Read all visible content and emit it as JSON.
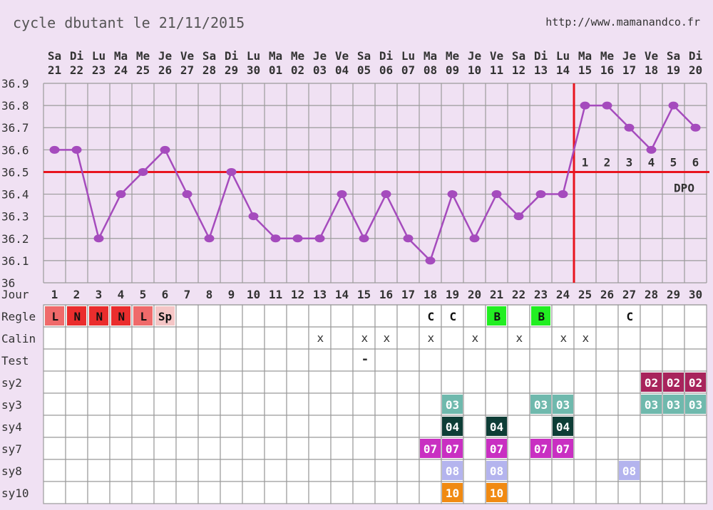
{
  "header": {
    "title": "cycle dbutant le 21/11/2015",
    "url": "http://www.mamanandco.fr"
  },
  "chart_data": {
    "type": "line",
    "title": "cycle dbutant le 21/11/2015",
    "weekdays": [
      "Sa",
      "Di",
      "Lu",
      "Ma",
      "Me",
      "Je",
      "Ve",
      "Sa",
      "Di",
      "Lu",
      "Ma",
      "Me",
      "Je",
      "Ve",
      "Sa",
      "Di",
      "Lu",
      "Ma",
      "Me",
      "Je",
      "Ve",
      "Sa",
      "Di",
      "Lu",
      "Ma",
      "Me",
      "Je",
      "Ve",
      "Sa",
      "Di"
    ],
    "dates": [
      "21",
      "22",
      "23",
      "24",
      "25",
      "26",
      "27",
      "28",
      "29",
      "30",
      "01",
      "02",
      "03",
      "04",
      "05",
      "06",
      "07",
      "08",
      "09",
      "10",
      "11",
      "12",
      "13",
      "14",
      "15",
      "16",
      "17",
      "18",
      "19",
      "20"
    ],
    "cycle_days": [
      "1",
      "2",
      "3",
      "4",
      "5",
      "6",
      "7",
      "8",
      "9",
      "10",
      "11",
      "12",
      "13",
      "14",
      "15",
      "16",
      "17",
      "18",
      "19",
      "20",
      "21",
      "22",
      "23",
      "24",
      "25",
      "26",
      "27",
      "28",
      "29",
      "30"
    ],
    "y_ticks": [
      "36.9",
      "36.8",
      "36.7",
      "36.6",
      "36.5",
      "36.4",
      "36.3",
      "36.2",
      "36.1",
      "36"
    ],
    "ylim": [
      36.0,
      36.9
    ],
    "temperatures": [
      36.6,
      36.6,
      36.2,
      36.4,
      36.5,
      36.6,
      36.4,
      36.2,
      36.5,
      36.3,
      36.2,
      36.2,
      36.2,
      36.4,
      36.2,
      36.4,
      36.2,
      36.1,
      36.4,
      36.2,
      36.4,
      36.3,
      36.4,
      36.4,
      36.8,
      36.8,
      36.7,
      36.6,
      36.8,
      36.7
    ],
    "coverline": 36.5,
    "ovulation_day": 24,
    "dpo_labels": [
      "1",
      "2",
      "3",
      "4",
      "5",
      "6"
    ],
    "dpo_text": "DPO",
    "grid": true,
    "row_labels": [
      "Jour",
      "Regle",
      "Calin",
      "Test",
      "sy2",
      "sy3",
      "sy4",
      "sy7",
      "sy8",
      "sy10"
    ],
    "colors": {
      "line": "#a54bbd",
      "coverline": "#e8141e",
      "grid": "#9b9b9b",
      "cell_bg": "#ffffff",
      "regle_L": "#ef6a6a",
      "regle_N": "#ea2d2d",
      "regle_Sp": "#f5c6c6",
      "regle_B": "#22ee22",
      "sy2": "#a8245c",
      "sy3": "#6fb9ad",
      "sy4": "#0e3d36",
      "sy7": "#c92fc2",
      "sy8": "#b4b4ee",
      "sy10": "#f08a12"
    },
    "regle": [
      {
        "day": 1,
        "text": "L",
        "kind": "regle_L"
      },
      {
        "day": 2,
        "text": "N",
        "kind": "regle_N"
      },
      {
        "day": 3,
        "text": "N",
        "kind": "regle_N"
      },
      {
        "day": 4,
        "text": "N",
        "kind": "regle_N"
      },
      {
        "day": 5,
        "text": "L",
        "kind": "regle_L"
      },
      {
        "day": 6,
        "text": "Sp",
        "kind": "regle_Sp"
      },
      {
        "day": 18,
        "text": "C",
        "kind": ""
      },
      {
        "day": 19,
        "text": "C",
        "kind": ""
      },
      {
        "day": 21,
        "text": "B",
        "kind": "regle_B"
      },
      {
        "day": 23,
        "text": "B",
        "kind": "regle_B"
      },
      {
        "day": 27,
        "text": "C",
        "kind": ""
      }
    ],
    "calin": [
      {
        "day": 13,
        "text": "x"
      },
      {
        "day": 15,
        "text": "x"
      },
      {
        "day": 16,
        "text": "x"
      },
      {
        "day": 18,
        "text": "x"
      },
      {
        "day": 20,
        "text": "x"
      },
      {
        "day": 22,
        "text": "x"
      },
      {
        "day": 24,
        "text": "x"
      },
      {
        "day": 25,
        "text": "x"
      }
    ],
    "test": [
      {
        "day": 15,
        "text": "-"
      }
    ],
    "symptoms": {
      "sy2": {
        "text": "02",
        "days": [
          28,
          29,
          30
        ]
      },
      "sy3": {
        "text": "03",
        "days": [
          19,
          23,
          24,
          28,
          29,
          30
        ]
      },
      "sy4": {
        "text": "04",
        "days": [
          19,
          21,
          24
        ]
      },
      "sy7": {
        "text": "07",
        "days": [
          18,
          19,
          21,
          23,
          24
        ]
      },
      "sy8": {
        "text": "08",
        "days": [
          19,
          21,
          27
        ]
      },
      "sy10": {
        "text": "10",
        "days": [
          19,
          21
        ]
      }
    }
  }
}
